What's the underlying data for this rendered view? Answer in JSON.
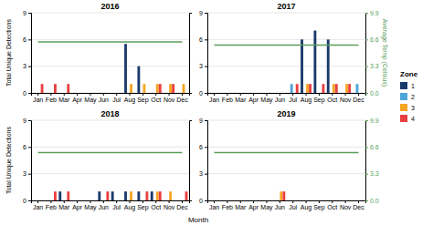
{
  "chart_data": [
    {
      "type": "bar",
      "title": "2016",
      "categories": [
        "Jan",
        "Feb",
        "Mar",
        "Apr",
        "May",
        "Jun",
        "Jul",
        "Aug",
        "Sep",
        "Oct",
        "Nov",
        "Dec"
      ],
      "series": [
        {
          "name": "1",
          "color": "#1a3a6b",
          "values": [
            0,
            0,
            0,
            0,
            0,
            0,
            0,
            5.5,
            3,
            0,
            0,
            0
          ]
        },
        {
          "name": "2",
          "color": "#4da6d9",
          "values": [
            0,
            0,
            0,
            0,
            0,
            0,
            0,
            0,
            0,
            0,
            0,
            0
          ]
        },
        {
          "name": "3",
          "color": "#f4a623",
          "values": [
            0,
            0,
            0,
            0,
            0,
            0,
            0,
            1,
            1,
            1,
            1,
            1
          ]
        },
        {
          "name": "4",
          "color": "#e84040",
          "values": [
            1,
            1,
            1,
            0,
            0,
            0,
            0,
            0,
            0,
            1,
            1,
            0
          ]
        },
        {
          "type": "line",
          "axis": "y2",
          "color": "#5a9e5a",
          "values": [
            6.3,
            6.3,
            6.3,
            6.3,
            6.3,
            6.3,
            6.3,
            6.3,
            6.3,
            6.3,
            6.3,
            6.3
          ]
        }
      ],
      "ylabel": "Total Unique Detections",
      "ylim": [
        0,
        9
      ],
      "yticks": [
        0,
        3,
        6,
        9
      ],
      "y2lim": [
        0,
        9.9
      ],
      "grid": true,
      "legend": "right",
      "legend_title": "Zone"
    },
    {
      "type": "bar",
      "title": "2017",
      "categories": [
        "Jan",
        "Feb",
        "Mar",
        "Apr",
        "May",
        "Jun",
        "Jul",
        "Aug",
        "Sep",
        "Oct",
        "Nov",
        "Dec"
      ],
      "series": [
        {
          "name": "1",
          "color": "#1a3a6b",
          "values": [
            0,
            0,
            0,
            0,
            0,
            0,
            0,
            6,
            7,
            6,
            0,
            0
          ]
        },
        {
          "name": "2",
          "color": "#4da6d9",
          "values": [
            0,
            0,
            0,
            0,
            0,
            0,
            1,
            0,
            0,
            0,
            0,
            1
          ]
        },
        {
          "name": "3",
          "color": "#f4a623",
          "values": [
            0,
            0,
            0,
            0,
            0,
            0,
            0,
            1,
            0,
            1,
            1,
            0
          ]
        },
        {
          "name": "4",
          "color": "#e84040",
          "values": [
            0,
            0,
            0,
            0,
            0,
            0,
            1,
            1,
            1,
            1,
            1,
            0
          ]
        },
        {
          "type": "line",
          "axis": "y2",
          "color": "#5a9e5a",
          "values": [
            5.9,
            5.9,
            5.9,
            5.9,
            5.9,
            5.9,
            5.9,
            5.9,
            5.9,
            5.9,
            5.9,
            5.9
          ]
        }
      ],
      "y2label": "Average Temp (Celsius)",
      "ylim": [
        0,
        9
      ],
      "yticks": [
        0,
        3,
        6,
        9
      ],
      "y2lim": [
        0,
        9.9
      ],
      "y2ticks": [
        {
          "value": 0.0,
          "label": "0.0"
        },
        3.3,
        6.6,
        9.9
      ],
      "grid": true
    },
    {
      "type": "bar",
      "title": "2018",
      "categories": [
        "Jan",
        "Feb",
        "Mar",
        "Apr",
        "May",
        "Jun",
        "Jul",
        "Aug",
        "Sep",
        "Oct",
        "Nov",
        "Dec"
      ],
      "series": [
        {
          "name": "1",
          "color": "#1a3a6b",
          "values": [
            0,
            0,
            1,
            0,
            0,
            1,
            1,
            1,
            1,
            1,
            0,
            0
          ]
        },
        {
          "name": "2",
          "color": "#4da6d9",
          "values": [
            0,
            0,
            0,
            0,
            0,
            0,
            0,
            0,
            0,
            0,
            0,
            0
          ]
        },
        {
          "name": "3",
          "color": "#f4a623",
          "values": [
            0,
            0,
            0,
            0,
            0,
            0,
            0,
            1,
            0,
            1,
            1,
            0
          ]
        },
        {
          "name": "4",
          "color": "#e84040",
          "values": [
            0,
            1,
            1,
            0,
            0,
            1,
            0,
            0,
            1,
            1,
            0,
            1
          ]
        },
        {
          "type": "line",
          "axis": "y2",
          "color": "#5a9e5a",
          "values": [
            5.9,
            5.9,
            5.9,
            5.9,
            5.9,
            5.9,
            5.9,
            5.9,
            5.9,
            5.9,
            5.9,
            5.9
          ]
        }
      ],
      "xlabel": "Month",
      "ylabel": "Total Unique Detections",
      "ylim": [
        0,
        9
      ],
      "yticks": [
        0,
        3,
        6,
        9
      ],
      "y2lim": [
        0,
        9.9
      ],
      "grid": true
    },
    {
      "type": "bar",
      "title": "2019",
      "categories": [
        "Jan",
        "Feb",
        "Mar",
        "Apr",
        "May",
        "Jun",
        "Jul",
        "Aug",
        "Sep",
        "Oct",
        "Nov",
        "Dec"
      ],
      "series": [
        {
          "name": "1",
          "color": "#1a3a6b",
          "values": [
            0,
            0,
            0,
            0,
            0,
            0,
            0,
            0,
            0,
            0,
            0,
            0
          ]
        },
        {
          "name": "2",
          "color": "#4da6d9",
          "values": [
            0,
            0,
            0,
            0,
            0,
            0,
            0,
            0,
            0,
            0,
            0,
            0
          ]
        },
        {
          "name": "3",
          "color": "#f4a623",
          "values": [
            0,
            0,
            0,
            0,
            0,
            1,
            0,
            0,
            0,
            0,
            0,
            0
          ]
        },
        {
          "name": "4",
          "color": "#e84040",
          "values": [
            0,
            0,
            0,
            0,
            0,
            1,
            0,
            0,
            0,
            0,
            0,
            0
          ]
        },
        {
          "type": "line",
          "axis": "y2",
          "color": "#5a9e5a",
          "values": [
            5.9,
            5.9,
            5.9,
            5.9,
            5.9,
            5.9,
            5.9,
            5.9,
            5.9,
            5.9,
            5.9,
            5.9
          ]
        }
      ],
      "ylim": [
        0,
        9
      ],
      "yticks": [
        0,
        3,
        6,
        9
      ],
      "y2lim": [
        0,
        9.9
      ],
      "y2ticks": [
        {
          "value": 0.0,
          "label": "0.0"
        },
        3.3,
        6.6,
        9.9
      ],
      "grid": true
    }
  ]
}
